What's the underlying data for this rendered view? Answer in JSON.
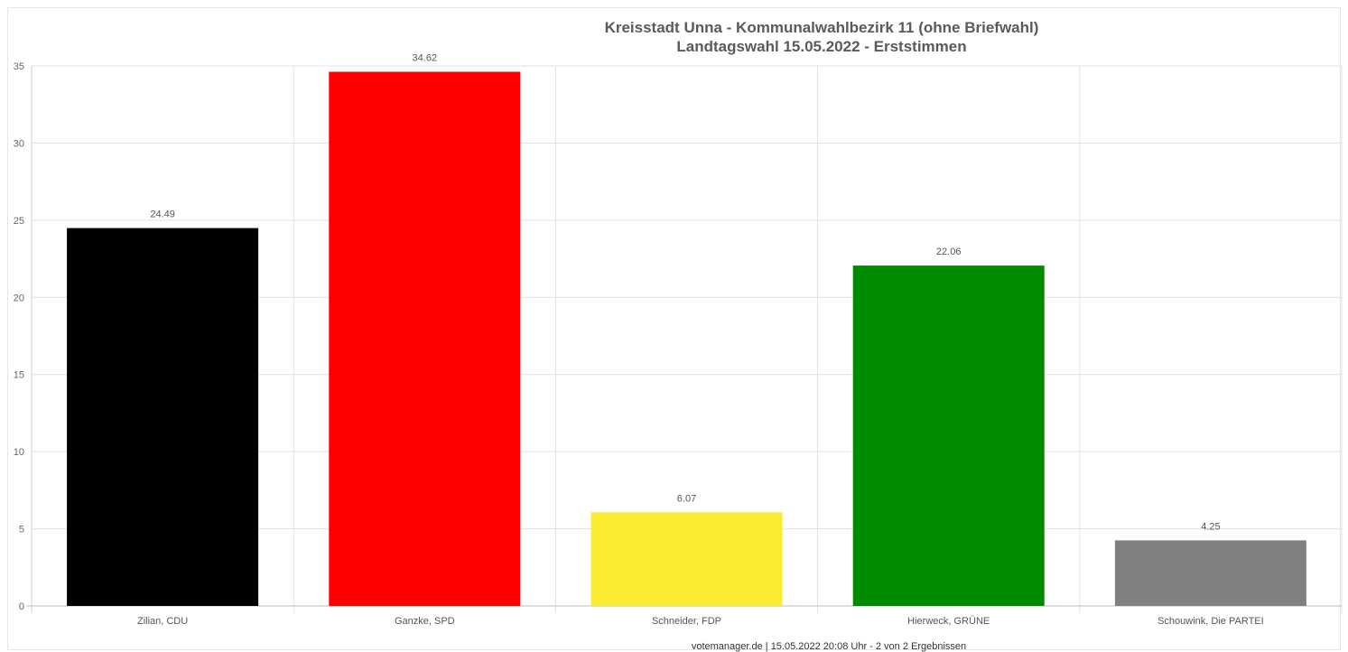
{
  "chart_data": {
    "type": "bar",
    "title_line1": "Kreisstadt Unna - Kommunalwahlbezirk 11 (ohne Briefwahl)",
    "title_line2": "Landtagswahl 15.05.2022  - Erststimmen",
    "categories": [
      "Zilian, CDU",
      "Ganzke, SPD",
      "Schneider, FDP",
      "Hierweck, GRÜNE",
      "Schouwink, Die PARTEI"
    ],
    "values": [
      24.49,
      34.62,
      6.07,
      22.06,
      4.25
    ],
    "value_labels": [
      "24.49",
      "34.62",
      "6.07",
      "22.06",
      "4.25"
    ],
    "colors": [
      "#000000",
      "#ff0000",
      "#f9ec31",
      "#008a00",
      "#808080"
    ],
    "ylim": [
      0,
      35
    ],
    "yticks": [
      0,
      5,
      10,
      15,
      20,
      25,
      30,
      35
    ],
    "ytick_labels": [
      "0",
      "5",
      "10",
      "15",
      "20",
      "25",
      "30",
      "35"
    ],
    "xlabel": "",
    "ylabel": "",
    "grid": true,
    "footer": "votemanager.de | 15.05.2022 20:08 Uhr - 2 von 2 Ergebnissen"
  }
}
